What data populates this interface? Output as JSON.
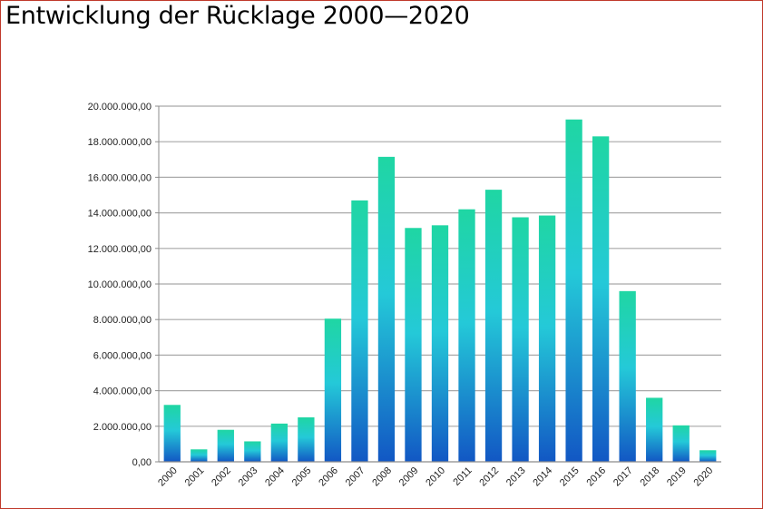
{
  "title": "Entwicklung der Rücklage 2000—2020",
  "chart_data": {
    "type": "bar",
    "title": "Entwicklung der Rücklage 2000—2020",
    "xlabel": "",
    "ylabel": "",
    "categories": [
      "2000",
      "2001",
      "2002",
      "2003",
      "2004",
      "2005",
      "2006",
      "2007",
      "2008",
      "2009",
      "2010",
      "2011",
      "2012",
      "2013",
      "2014",
      "2015",
      "2016",
      "2017",
      "2018",
      "2019",
      "2020"
    ],
    "values": [
      3200000,
      700000,
      1800000,
      1150000,
      2150000,
      2500000,
      8050000,
      14700000,
      17150000,
      13150000,
      13300000,
      14200000,
      15300000,
      13750000,
      13850000,
      19250000,
      18300000,
      9600000,
      3600000,
      2050000,
      650000
    ],
    "ylim": [
      0,
      20000000
    ],
    "yticks": [
      0,
      2000000,
      4000000,
      6000000,
      8000000,
      10000000,
      12000000,
      14000000,
      16000000,
      18000000,
      20000000
    ],
    "ytick_labels": [
      "0,00",
      "2.000.000,00",
      "4.000.000,00",
      "6.000.000,00",
      "8.000.000,00",
      "10.000.000,00",
      "12.000.000,00",
      "14.000.000,00",
      "16.000.000,00",
      "18.000.000,00",
      "20.000.000,00"
    ],
    "grid": true,
    "legend": "none",
    "colors": {
      "bar_top": "#1fd6a3",
      "bar_mid": "#24c9d8",
      "bar_bottom": "#1257c4",
      "grid": "#a9a9a9",
      "axis": "#8c8c8c",
      "frame": "#c0392b"
    }
  }
}
